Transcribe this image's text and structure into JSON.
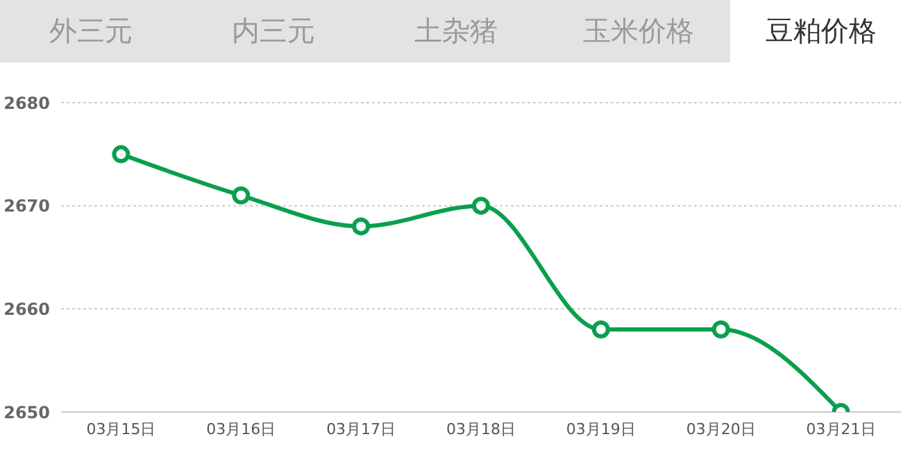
{
  "chart_data": {
    "type": "line",
    "title": "豆粕价格",
    "annotations": [
      "外三元",
      "内三元",
      "土杂猪",
      "玉米价格"
    ],
    "categories": [
      "03月15日",
      "03月16日",
      "03月17日",
      "03月18日",
      "03月19日",
      "03月20日",
      "03月21日"
    ],
    "series": [
      {
        "color": "#0a9f4e",
        "values": [
          2675,
          2671,
          2668,
          2670,
          2658,
          2658,
          2650
        ]
      }
    ],
    "ylim": [
      2650,
      2680
    ],
    "yticks": [
      2650,
      2660,
      2670,
      2680
    ],
    "grid": "y",
    "marker": "circle",
    "line_style": "solid",
    "legend": false
  }
}
